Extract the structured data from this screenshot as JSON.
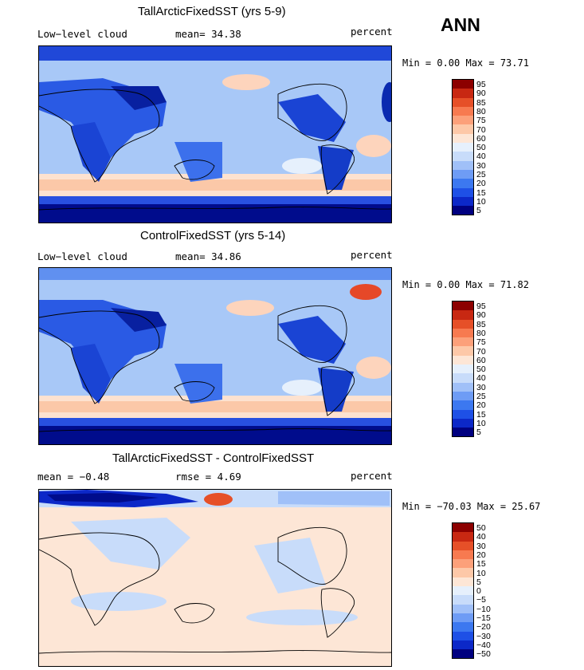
{
  "season": "ANN",
  "colorbars": {
    "field_colors": [
      "#000080",
      "#0c28c8",
      "#1e50e6",
      "#3c78f0",
      "#6e9cf5",
      "#a0c0f8",
      "#c8dcfa",
      "#e6f0fc",
      "#fde6d6",
      "#fdc8a8",
      "#fca07a",
      "#f77a50",
      "#e65028",
      "#c82812",
      "#8c0000"
    ],
    "field_labels": [
      "95",
      "90",
      "85",
      "80",
      "75",
      "70",
      "60",
      "50",
      "40",
      "30",
      "25",
      "20",
      "15",
      "10",
      "5"
    ],
    "diff_colors": [
      "#000080",
      "#0c28c8",
      "#1e50e6",
      "#3c78f0",
      "#6e9cf5",
      "#a0c0f8",
      "#c8dcfa",
      "#e6f0fc",
      "#fde6d6",
      "#fdc8a8",
      "#fca07a",
      "#f77a50",
      "#e65028",
      "#c82812",
      "#8c0000"
    ],
    "diff_labels": [
      "50",
      "40",
      "30",
      "20",
      "15",
      "10",
      "5",
      "0",
      "−5",
      "−10",
      "−15",
      "−20",
      "−30",
      "−40",
      "−50"
    ]
  },
  "panels": [
    {
      "title": "TallArcticFixedSST (yrs 5-9)",
      "left_label": "Low−level cloud",
      "middle_label": "mean=  34.38",
      "right_label": "percent",
      "minmax": "Min =   0.00 Max =  73.71"
    },
    {
      "title": "ControlFixedSST (yrs 5-14)",
      "left_label": "Low−level cloud",
      "middle_label": "mean=  34.86",
      "right_label": "percent",
      "minmax": "Min =   0.00 Max =  71.82"
    },
    {
      "title": "TallArcticFixedSST - ControlFixedSST",
      "left_label": "mean =  −0.48",
      "middle_label": "rmse =   4.69",
      "right_label": "percent",
      "minmax": "Min = −70.03 Max =  25.67"
    }
  ]
}
